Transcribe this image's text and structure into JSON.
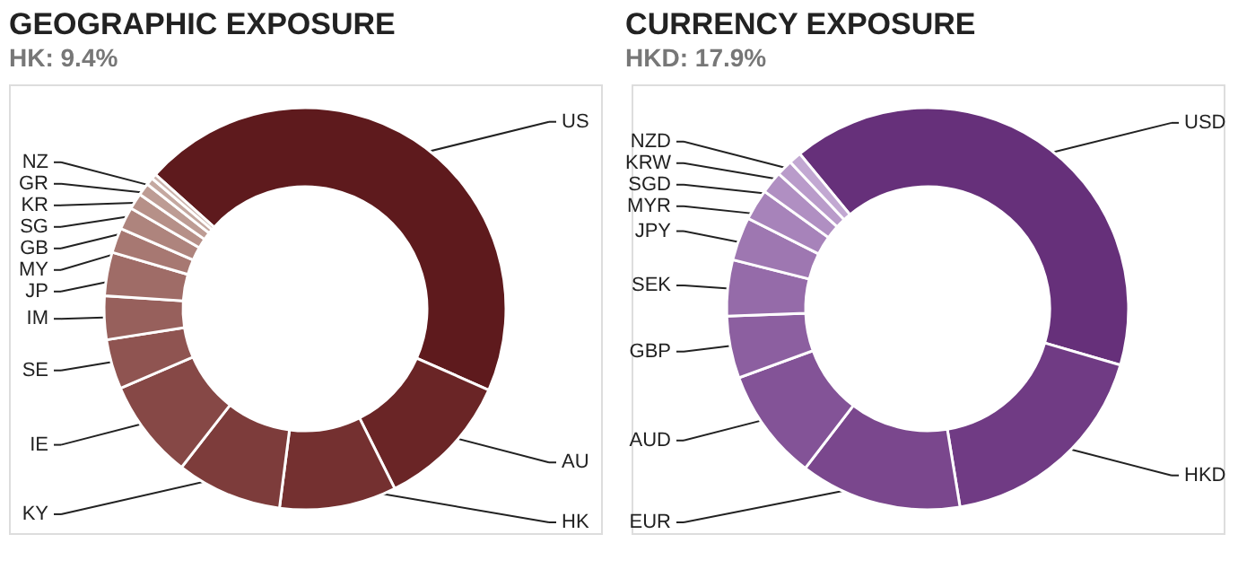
{
  "chart_data": [
    {
      "type": "donut",
      "title": "GEOGRAPHIC EXPOSURE",
      "subtitle": "HK: 9.4%",
      "categories": [
        "US",
        "AU",
        "HK",
        "KY",
        "IE",
        "SE",
        "IM",
        "JP",
        "MY",
        "GB",
        "SG",
        "KR",
        "GR",
        "NZ"
      ],
      "values": [
        45,
        11,
        9.4,
        8.5,
        8,
        4,
        3.5,
        3.5,
        2,
        1.8,
        1.3,
        1,
        0.6,
        0.4
      ],
      "colors": [
        "#5e1a1d",
        "#6a2526",
        "#743030",
        "#7d3c3b",
        "#864846",
        "#8f5451",
        "#97605c",
        "#9f6c67",
        "#a77872",
        "#ae847d",
        "#b69088",
        "#bd9c94",
        "#c4a8a0",
        "#ccb4ad"
      ]
    },
    {
      "type": "donut",
      "title": "CURRENCY EXPOSURE",
      "subtitle": "HKD: 17.9%",
      "categories": [
        "USD",
        "HKD",
        "EUR",
        "AUD",
        "GBP",
        "SEK",
        "JPY",
        "MYR",
        "SGD",
        "KRW",
        "NZD"
      ],
      "values": [
        40.5,
        17.9,
        13,
        9,
        5,
        4.5,
        3.5,
        2.5,
        1.8,
        1.3,
        1
      ],
      "colors": [
        "#66307a",
        "#703b84",
        "#7a478d",
        "#835397",
        "#8c5fa0",
        "#956ba9",
        "#9e77b1",
        "#a783ba",
        "#b08fc2",
        "#b99bca",
        "#c2a8d2"
      ]
    }
  ]
}
